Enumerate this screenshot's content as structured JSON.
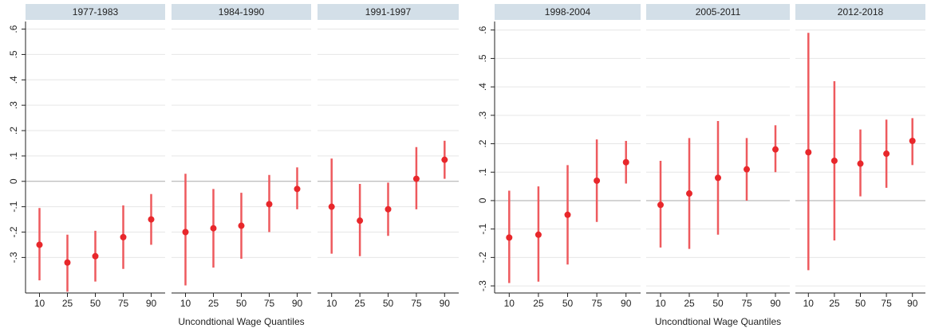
{
  "chart_data": [
    {
      "type": "errorbar",
      "xlabel": "Uncondtional Wage Quantiles",
      "color": "#e8272b",
      "bar_color": "#ee5a5e",
      "categories": [
        "10",
        "25",
        "50",
        "75",
        "90"
      ],
      "ylim": [
        -0.44,
        0.63
      ],
      "yticks": [
        {
          "value": 0.6,
          "label": ".6"
        },
        {
          "value": 0.5,
          "label": ".5"
        },
        {
          "value": 0.4,
          "label": ".4"
        },
        {
          "value": 0.3,
          "label": ".3"
        },
        {
          "value": 0.2,
          "label": ".2"
        },
        {
          "value": 0.1,
          "label": ".1"
        },
        0,
        {
          "value": -0.1,
          "label": "-.1"
        },
        {
          "value": -0.2,
          "label": "-.2"
        },
        {
          "value": -0.3,
          "label": "-.3"
        }
      ],
      "grid": true,
      "panels": [
        {
          "title": "1977-1983",
          "values": [
            -0.25,
            -0.32,
            -0.295,
            -0.22,
            -0.15
          ],
          "lower": [
            -0.39,
            -0.435,
            -0.395,
            -0.345,
            -0.25
          ],
          "upper": [
            -0.105,
            -0.21,
            -0.195,
            -0.095,
            -0.05
          ]
        },
        {
          "title": "1984-1990",
          "values": [
            -0.2,
            -0.185,
            -0.175,
            -0.09,
            -0.03
          ],
          "lower": [
            -0.41,
            -0.34,
            -0.305,
            -0.2,
            -0.11
          ],
          "upper": [
            0.03,
            -0.03,
            -0.045,
            0.025,
            0.055
          ]
        },
        {
          "title": "1991-1997",
          "values": [
            -0.1,
            -0.155,
            -0.11,
            0.01,
            0.085
          ],
          "lower": [
            -0.285,
            -0.295,
            -0.215,
            -0.11,
            0.01
          ],
          "upper": [
            0.09,
            -0.01,
            -0.005,
            0.135,
            0.16
          ]
        }
      ]
    },
    {
      "type": "errorbar",
      "xlabel": "Uncondtional Wage Quantiles",
      "color": "#e8272b",
      "bar_color": "#ee5a5e",
      "categories": [
        "10",
        "25",
        "50",
        "75",
        "90"
      ],
      "ylim": [
        -0.325,
        0.63
      ],
      "yticks": [
        {
          "value": 0.6,
          "label": ".6"
        },
        {
          "value": 0.5,
          "label": ".5"
        },
        {
          "value": 0.4,
          "label": ".4"
        },
        {
          "value": 0.3,
          "label": ".3"
        },
        {
          "value": 0.2,
          "label": ".2"
        },
        {
          "value": 0.1,
          "label": ".1"
        },
        0,
        {
          "value": -0.1,
          "label": "-.1"
        },
        {
          "value": -0.2,
          "label": "-.2"
        },
        {
          "value": -0.3,
          "label": "-.3"
        }
      ],
      "grid": true,
      "panels": [
        {
          "title": "1998-2004",
          "values": [
            -0.13,
            -0.12,
            -0.05,
            0.07,
            0.135
          ],
          "lower": [
            -0.29,
            -0.285,
            -0.225,
            -0.075,
            0.06
          ],
          "upper": [
            0.035,
            0.05,
            0.125,
            0.215,
            0.21
          ]
        },
        {
          "title": "2005-2011",
          "values": [
            -0.015,
            0.025,
            0.08,
            0.11,
            0.18
          ],
          "lower": [
            -0.165,
            -0.17,
            -0.12,
            0.0,
            0.1
          ],
          "upper": [
            0.14,
            0.22,
            0.28,
            0.22,
            0.265
          ]
        },
        {
          "title": "2012-2018",
          "values": [
            0.17,
            0.14,
            0.13,
            0.165,
            0.21
          ],
          "lower": [
            -0.245,
            -0.14,
            0.015,
            0.045,
            0.125
          ],
          "upper": [
            0.59,
            0.42,
            0.25,
            0.285,
            0.29
          ]
        }
      ]
    }
  ]
}
